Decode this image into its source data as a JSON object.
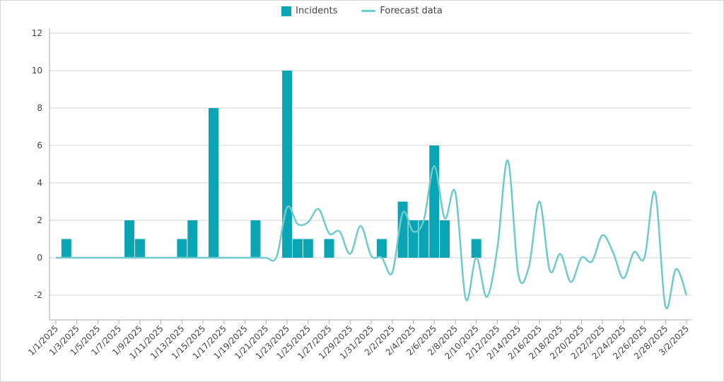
{
  "chart_data": {
    "type": "bar+line",
    "title": "",
    "xlabel": "",
    "ylabel": "",
    "ylim": [
      -3,
      12
    ],
    "yticks": [
      -2,
      0,
      2,
      4,
      6,
      8,
      10,
      12
    ],
    "grid": true,
    "legend_position": "top-center",
    "x_start": "1/1/2025",
    "x_end": "3/2/2025",
    "xtick_labels": [
      "1/1/2025",
      "1/3/2025",
      "1/5/2025",
      "1/7/2025",
      "1/9/2025",
      "1/11/2025",
      "1/13/2025",
      "1/15/2025",
      "1/17/2025",
      "1/19/2025",
      "1/21/2025",
      "1/23/2025",
      "1/25/2025",
      "1/27/2025",
      "1/29/2025",
      "1/31/2025",
      "2/2/2025",
      "2/4/2025",
      "2/6/2025",
      "2/8/2025",
      "2/10/2025",
      "2/12/2025",
      "2/14/2025",
      "2/16/2025",
      "2/18/2025",
      "2/20/2025",
      "2/22/2025",
      "2/24/2025",
      "2/26/2025",
      "2/28/2025",
      "3/2/2025"
    ],
    "series": [
      {
        "name": "Incidents",
        "type": "bar",
        "color": "#0aa5b5",
        "points": [
          {
            "x": "1/2/2025",
            "y": 1
          },
          {
            "x": "1/8/2025",
            "y": 2
          },
          {
            "x": "1/9/2025",
            "y": 1
          },
          {
            "x": "1/13/2025",
            "y": 1
          },
          {
            "x": "1/14/2025",
            "y": 2
          },
          {
            "x": "1/16/2025",
            "y": 8
          },
          {
            "x": "1/20/2025",
            "y": 2
          },
          {
            "x": "1/23/2025",
            "y": 10
          },
          {
            "x": "1/24/2025",
            "y": 1
          },
          {
            "x": "1/25/2025",
            "y": 1
          },
          {
            "x": "1/27/2025",
            "y": 1
          },
          {
            "x": "2/1/2025",
            "y": 1
          },
          {
            "x": "2/3/2025",
            "y": 3
          },
          {
            "x": "2/4/2025",
            "y": 2
          },
          {
            "x": "2/5/2025",
            "y": 2
          },
          {
            "x": "2/6/2025",
            "y": 6
          },
          {
            "x": "2/7/2025",
            "y": 2
          },
          {
            "x": "2/10/2025",
            "y": 1
          }
        ]
      },
      {
        "name": "Forecast data",
        "type": "line",
        "smooth": true,
        "color": "#6ecacd",
        "daily_values_from_1_1_2025": [
          0,
          0,
          0,
          0,
          0,
          0,
          0,
          0,
          0,
          0,
          0,
          0,
          0,
          0,
          0,
          0,
          0,
          0,
          0,
          0,
          0,
          0.05,
          2.7,
          1.8,
          1.9,
          2.6,
          1.3,
          1.4,
          0.2,
          1.7,
          0.1,
          0,
          -0.8,
          2.4,
          1.4,
          2.0,
          4.9,
          2.1,
          3.5,
          -2.2,
          0,
          -2.1,
          0.5,
          5.2,
          -0.9,
          -0.5,
          3.0,
          -0.7,
          0.2,
          -1.3,
          0,
          -0.2,
          1.2,
          0.3,
          -1.1,
          0.3,
          0,
          3.5,
          -2.6,
          -0.6,
          -2.0
        ]
      }
    ]
  }
}
